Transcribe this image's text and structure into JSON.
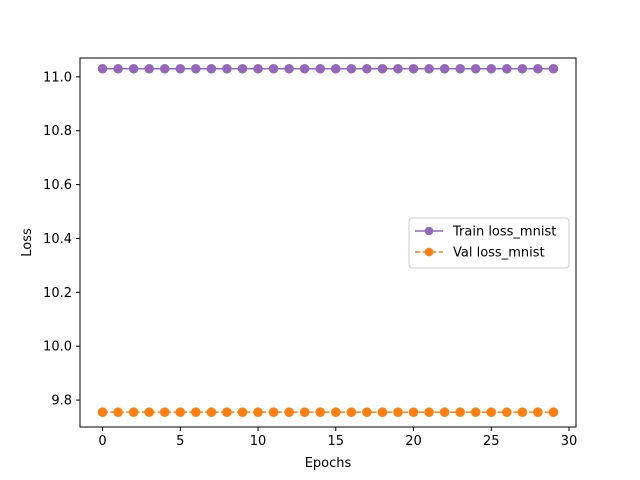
{
  "chart_data": {
    "type": "line",
    "title": "",
    "xlabel": "Epochs",
    "ylabel": "Loss",
    "xlim": [
      -1.45,
      30.45
    ],
    "ylim": [
      9.7,
      11.07
    ],
    "xticks": [
      0,
      5,
      10,
      15,
      20,
      25,
      30
    ],
    "yticks": [
      9.8,
      10.0,
      10.2,
      10.4,
      10.6,
      10.8,
      11.0
    ],
    "ytick_labels": [
      "9.8",
      "10.0",
      "10.2",
      "10.4",
      "10.6",
      "10.8",
      "11.0"
    ],
    "grid": false,
    "legend_position": "center-right",
    "x": [
      0,
      1,
      2,
      3,
      4,
      5,
      6,
      7,
      8,
      9,
      10,
      11,
      12,
      13,
      14,
      15,
      16,
      17,
      18,
      19,
      20,
      21,
      22,
      23,
      24,
      25,
      26,
      27,
      28,
      29
    ],
    "series": [
      {
        "name": "Train loss_mnist",
        "color": "#9467bd",
        "line_style": "solid",
        "marker": "circle",
        "values": [
          11.03,
          11.03,
          11.03,
          11.03,
          11.03,
          11.03,
          11.03,
          11.03,
          11.03,
          11.03,
          11.03,
          11.03,
          11.03,
          11.03,
          11.03,
          11.03,
          11.03,
          11.03,
          11.03,
          11.03,
          11.03,
          11.03,
          11.03,
          11.03,
          11.03,
          11.03,
          11.03,
          11.03,
          11.03,
          11.03
        ]
      },
      {
        "name": "Val loss_mnist",
        "color": "#ff7f0e",
        "line_style": "dashed",
        "marker": "circle",
        "values": [
          9.755,
          9.755,
          9.755,
          9.755,
          9.755,
          9.755,
          9.755,
          9.755,
          9.755,
          9.755,
          9.755,
          9.755,
          9.755,
          9.755,
          9.755,
          9.755,
          9.755,
          9.755,
          9.755,
          9.755,
          9.755,
          9.755,
          9.755,
          9.755,
          9.755,
          9.755,
          9.755,
          9.755,
          9.755,
          9.755
        ]
      }
    ]
  }
}
